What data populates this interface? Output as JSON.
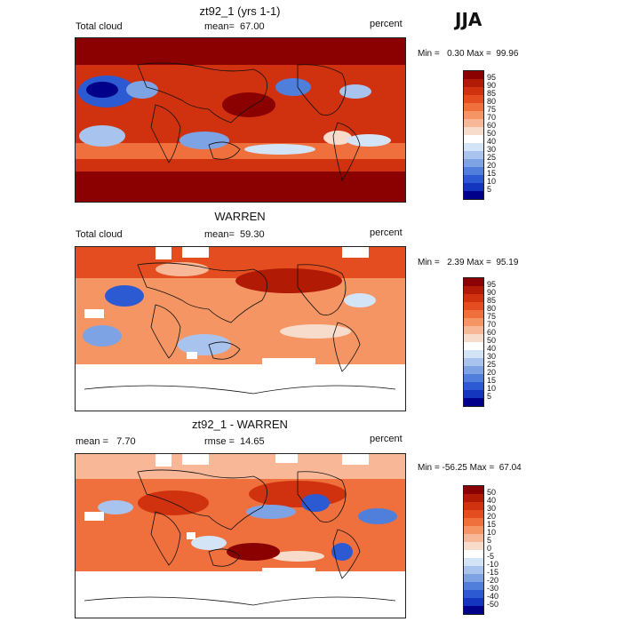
{
  "season_label": "JJA",
  "panels": [
    {
      "id": "model",
      "title": "zt92_1 (yrs 1-1)",
      "left_label": "Total cloud",
      "stat_label": "mean=  67.00",
      "unit": "percent",
      "minmax": "Min =   0.30 Max =  99.96",
      "colorbar_labels": [
        "95",
        "90",
        "85",
        "80",
        "75",
        "70",
        "60",
        "50",
        "40",
        "30",
        "25",
        "20",
        "15",
        "10",
        "5"
      ],
      "colorbar_colors": [
        "#8b0000",
        "#b11a05",
        "#d0310e",
        "#e44d1f",
        "#f0703d",
        "#f59563",
        "#f8b898",
        "#f8dccb",
        "#ffffff",
        "#d4e4f7",
        "#a8c4ee",
        "#7ea3e5",
        "#4f7fdb",
        "#2c5ad2",
        "#1436bf",
        "#00008b"
      ]
    },
    {
      "id": "obs",
      "title": "WARREN",
      "left_label": "Total cloud",
      "stat_label": "mean=  59.30",
      "unit": "percent",
      "minmax": "Min =   2.39 Max =  95.19",
      "colorbar_labels": [
        "95",
        "90",
        "85",
        "80",
        "75",
        "70",
        "60",
        "50",
        "40",
        "30",
        "25",
        "20",
        "15",
        "10",
        "5"
      ],
      "colorbar_colors": [
        "#8b0000",
        "#b11a05",
        "#d0310e",
        "#e44d1f",
        "#f0703d",
        "#f59563",
        "#f8b898",
        "#f8dccb",
        "#ffffff",
        "#d4e4f7",
        "#a8c4ee",
        "#7ea3e5",
        "#4f7fdb",
        "#2c5ad2",
        "#1436bf",
        "#00008b"
      ]
    },
    {
      "id": "diff",
      "title": "zt92_1 - WARREN",
      "left_label": "mean =   7.70",
      "stat_label": "rmse =  14.65",
      "unit": "percent",
      "minmax": "Min = -56.25 Max =  67.04",
      "colorbar_labels": [
        "50",
        "40",
        "30",
        "20",
        "15",
        "10",
        "5",
        "0",
        "-5",
        "-10",
        "-15",
        "-20",
        "-30",
        "-40",
        "-50"
      ],
      "colorbar_colors": [
        "#8b0000",
        "#b11a05",
        "#d0310e",
        "#e44d1f",
        "#f0703d",
        "#f59563",
        "#f8b898",
        "#f8dccb",
        "#ffffff",
        "#d4e4f7",
        "#a8c4ee",
        "#7ea3e5",
        "#4f7fdb",
        "#2c5ad2",
        "#1436bf",
        "#00008b"
      ]
    }
  ]
}
